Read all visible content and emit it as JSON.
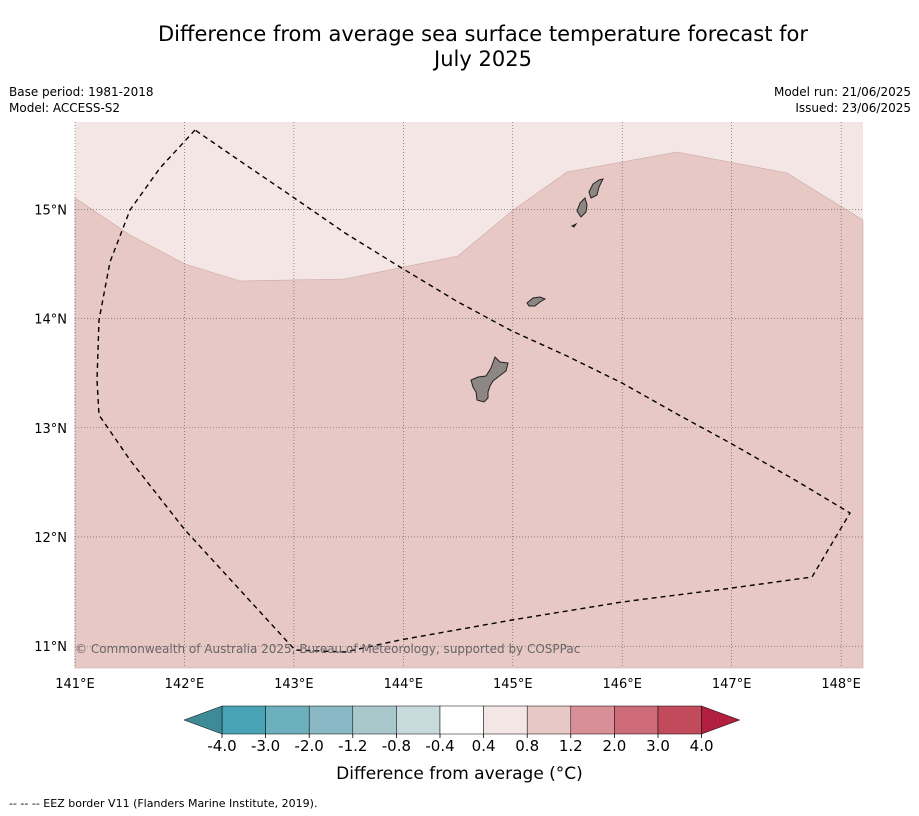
{
  "header": {
    "title_line1": "Difference from average sea surface temperature forecast for",
    "title_line2": "July 2025",
    "base_period": "Base period: 1981-2018",
    "model": "Model: ACCESS-S2",
    "model_run": "Model run: 21/06/2025",
    "issued": "Issued: 23/06/2025"
  },
  "map": {
    "copyright": "© Commonwealth of Australia 2025, Bureau of Meteorology, supported by COSPPac",
    "lon_labels": [
      "141°E",
      "142°E",
      "143°E",
      "144°E",
      "145°E",
      "146°E",
      "147°E",
      "148°E"
    ],
    "lat_labels": [
      "15°N",
      "14°N",
      "13°N",
      "12°N",
      "11°N"
    ],
    "lon_values": [
      141,
      142,
      143,
      144,
      145,
      146,
      147,
      148
    ],
    "lat_values": [
      15,
      14,
      13,
      12,
      11
    ],
    "lon_range": [
      141,
      148.2
    ],
    "lat_range": [
      10.8,
      15.8
    ],
    "anomaly_zones": [
      {
        "range": "0.4 to 0.8",
        "color": "#f4e6e5"
      },
      {
        "range": "0.8 to 1.2",
        "color": "#e8c8c4"
      }
    ],
    "land_color": "#8c8684",
    "eez_line_style": "dashed"
  },
  "colorbar": {
    "ticks": [
      "-4.0",
      "-3.0",
      "-2.0",
      "-1.2",
      "-0.8",
      "-0.4",
      "0.4",
      "0.8",
      "1.2",
      "2.0",
      "3.0",
      "4.0"
    ],
    "colors": [
      "#48a4b5",
      "#6cafbd",
      "#8ab8c4",
      "#a9c8cc",
      "#c9dadd",
      "#ffffff",
      "#f4e6e5",
      "#e8c8c4",
      "#d88f98",
      "#cd6b78",
      "#c14a5b"
    ],
    "under_color": "#3f8a97",
    "over_color": "#b31f3f",
    "label": "Difference from average (°C)"
  },
  "footnote": "--  --  -- EEZ border V11 (Flanders Marine Institute, 2019)."
}
